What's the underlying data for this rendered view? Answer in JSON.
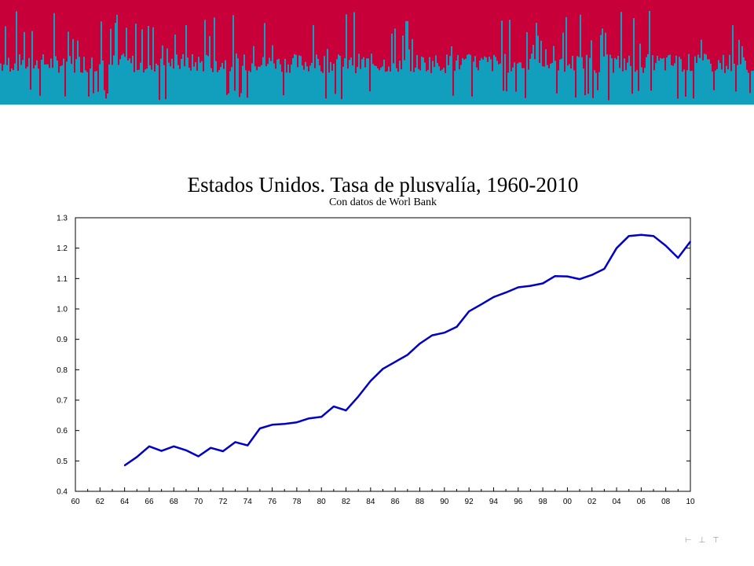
{
  "banner": {
    "colors": {
      "top": "#c8003a",
      "bottom": "#129fbd"
    }
  },
  "chart_data": {
    "type": "line",
    "title": "Estados Unidos. Tasa de plusvalía, 1960-2010",
    "subtitle": "Con datos de Worl Bank",
    "xlabel": "",
    "ylabel": "",
    "xlim": [
      1960,
      2010
    ],
    "ylim": [
      0.4,
      1.3
    ],
    "grid": false,
    "line_color": "#0000c8",
    "x_tick_labels": [
      "60",
      "62",
      "64",
      "66",
      "68",
      "70",
      "72",
      "74",
      "76",
      "78",
      "80",
      "82",
      "84",
      "86",
      "88",
      "90",
      "92",
      "94",
      "96",
      "98",
      "00",
      "02",
      "04",
      "06",
      "08",
      "10"
    ],
    "y_tick_labels": [
      "0.4",
      "0.5",
      "0.6",
      "0.7",
      "0.8",
      "0.9",
      "1.0",
      "1.1",
      "1.2",
      "1.3"
    ],
    "series": [
      {
        "x": [
          1964,
          1965,
          1966,
          1967,
          1968,
          1969,
          1970,
          1971,
          1972,
          1973,
          1974,
          1975,
          1976,
          1977,
          1978,
          1979,
          1980,
          1981,
          1982,
          1983,
          1984,
          1985,
          1986,
          1987,
          1988,
          1989,
          1990,
          1991,
          1992,
          1993,
          1994,
          1995,
          1996,
          1997,
          1998,
          1999,
          2000,
          2001,
          2002,
          2003,
          2004,
          2005,
          2006,
          2007,
          2008,
          2009,
          2010
        ],
        "values": [
          0.485,
          0.513,
          0.548,
          0.533,
          0.548,
          0.535,
          0.515,
          0.543,
          0.532,
          0.562,
          0.551,
          0.607,
          0.619,
          0.622,
          0.627,
          0.64,
          0.645,
          0.679,
          0.666,
          0.712,
          0.763,
          0.803,
          0.826,
          0.849,
          0.886,
          0.913,
          0.922,
          0.941,
          0.992,
          1.015,
          1.039,
          1.054,
          1.071,
          1.076,
          1.084,
          1.108,
          1.107,
          1.098,
          1.112,
          1.132,
          1.2,
          1.24,
          1.244,
          1.24,
          1.208,
          1.168,
          1.222
        ]
      }
    ]
  },
  "footer": {
    "glyph": "⊢ ⊥ ⊤"
  }
}
